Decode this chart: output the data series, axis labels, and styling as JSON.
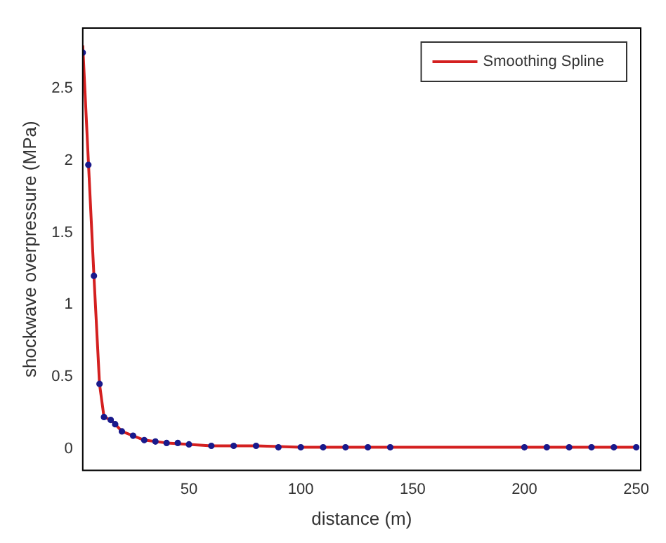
{
  "chart_data": {
    "type": "scatter",
    "xlabel": "distance (m)",
    "ylabel": "shockwave overpressure (MPa)",
    "xlim": [
      2.5,
      252
    ],
    "ylim": [
      -0.15,
      2.92
    ],
    "xticks": [
      50,
      100,
      150,
      200,
      250
    ],
    "yticks": [
      0,
      0.5,
      1,
      1.5,
      2,
      2.5
    ],
    "grid": false,
    "legend": "top right",
    "series": [
      {
        "color": "#1a1a8c",
        "marker": "circle",
        "x": [
          2.5,
          5,
          7.5,
          10,
          12,
          15,
          17,
          20,
          25,
          30,
          35,
          40,
          45,
          50,
          60,
          70,
          80,
          90,
          100,
          110,
          120,
          130,
          140,
          200,
          210,
          220,
          230,
          240,
          250
        ],
        "values": [
          2.75,
          1.97,
          1.2,
          0.45,
          0.22,
          0.2,
          0.17,
          0.12,
          0.09,
          0.06,
          0.05,
          0.04,
          0.04,
          0.03,
          0.02,
          0.02,
          0.02,
          0.01,
          0.01,
          0.01,
          0.01,
          0.01,
          0.01,
          0.01,
          0.01,
          0.01,
          0.01,
          0.01,
          0.01
        ]
      },
      {
        "type": "line",
        "name": "Smoothing Spline",
        "color": "#d42020",
        "marker": "none",
        "line_style": "solid",
        "x": [
          2.5,
          5,
          7.5,
          10,
          12,
          15,
          17,
          20,
          25,
          30,
          40,
          50,
          60,
          80,
          100,
          140,
          185,
          200,
          250
        ],
        "values": [
          2.8,
          2.0,
          1.2,
          0.45,
          0.22,
          0.2,
          0.17,
          0.12,
          0.09,
          0.06,
          0.04,
          0.03,
          0.02,
          0.02,
          0.01,
          0.01,
          0.01,
          0.01,
          0.01
        ]
      }
    ]
  }
}
